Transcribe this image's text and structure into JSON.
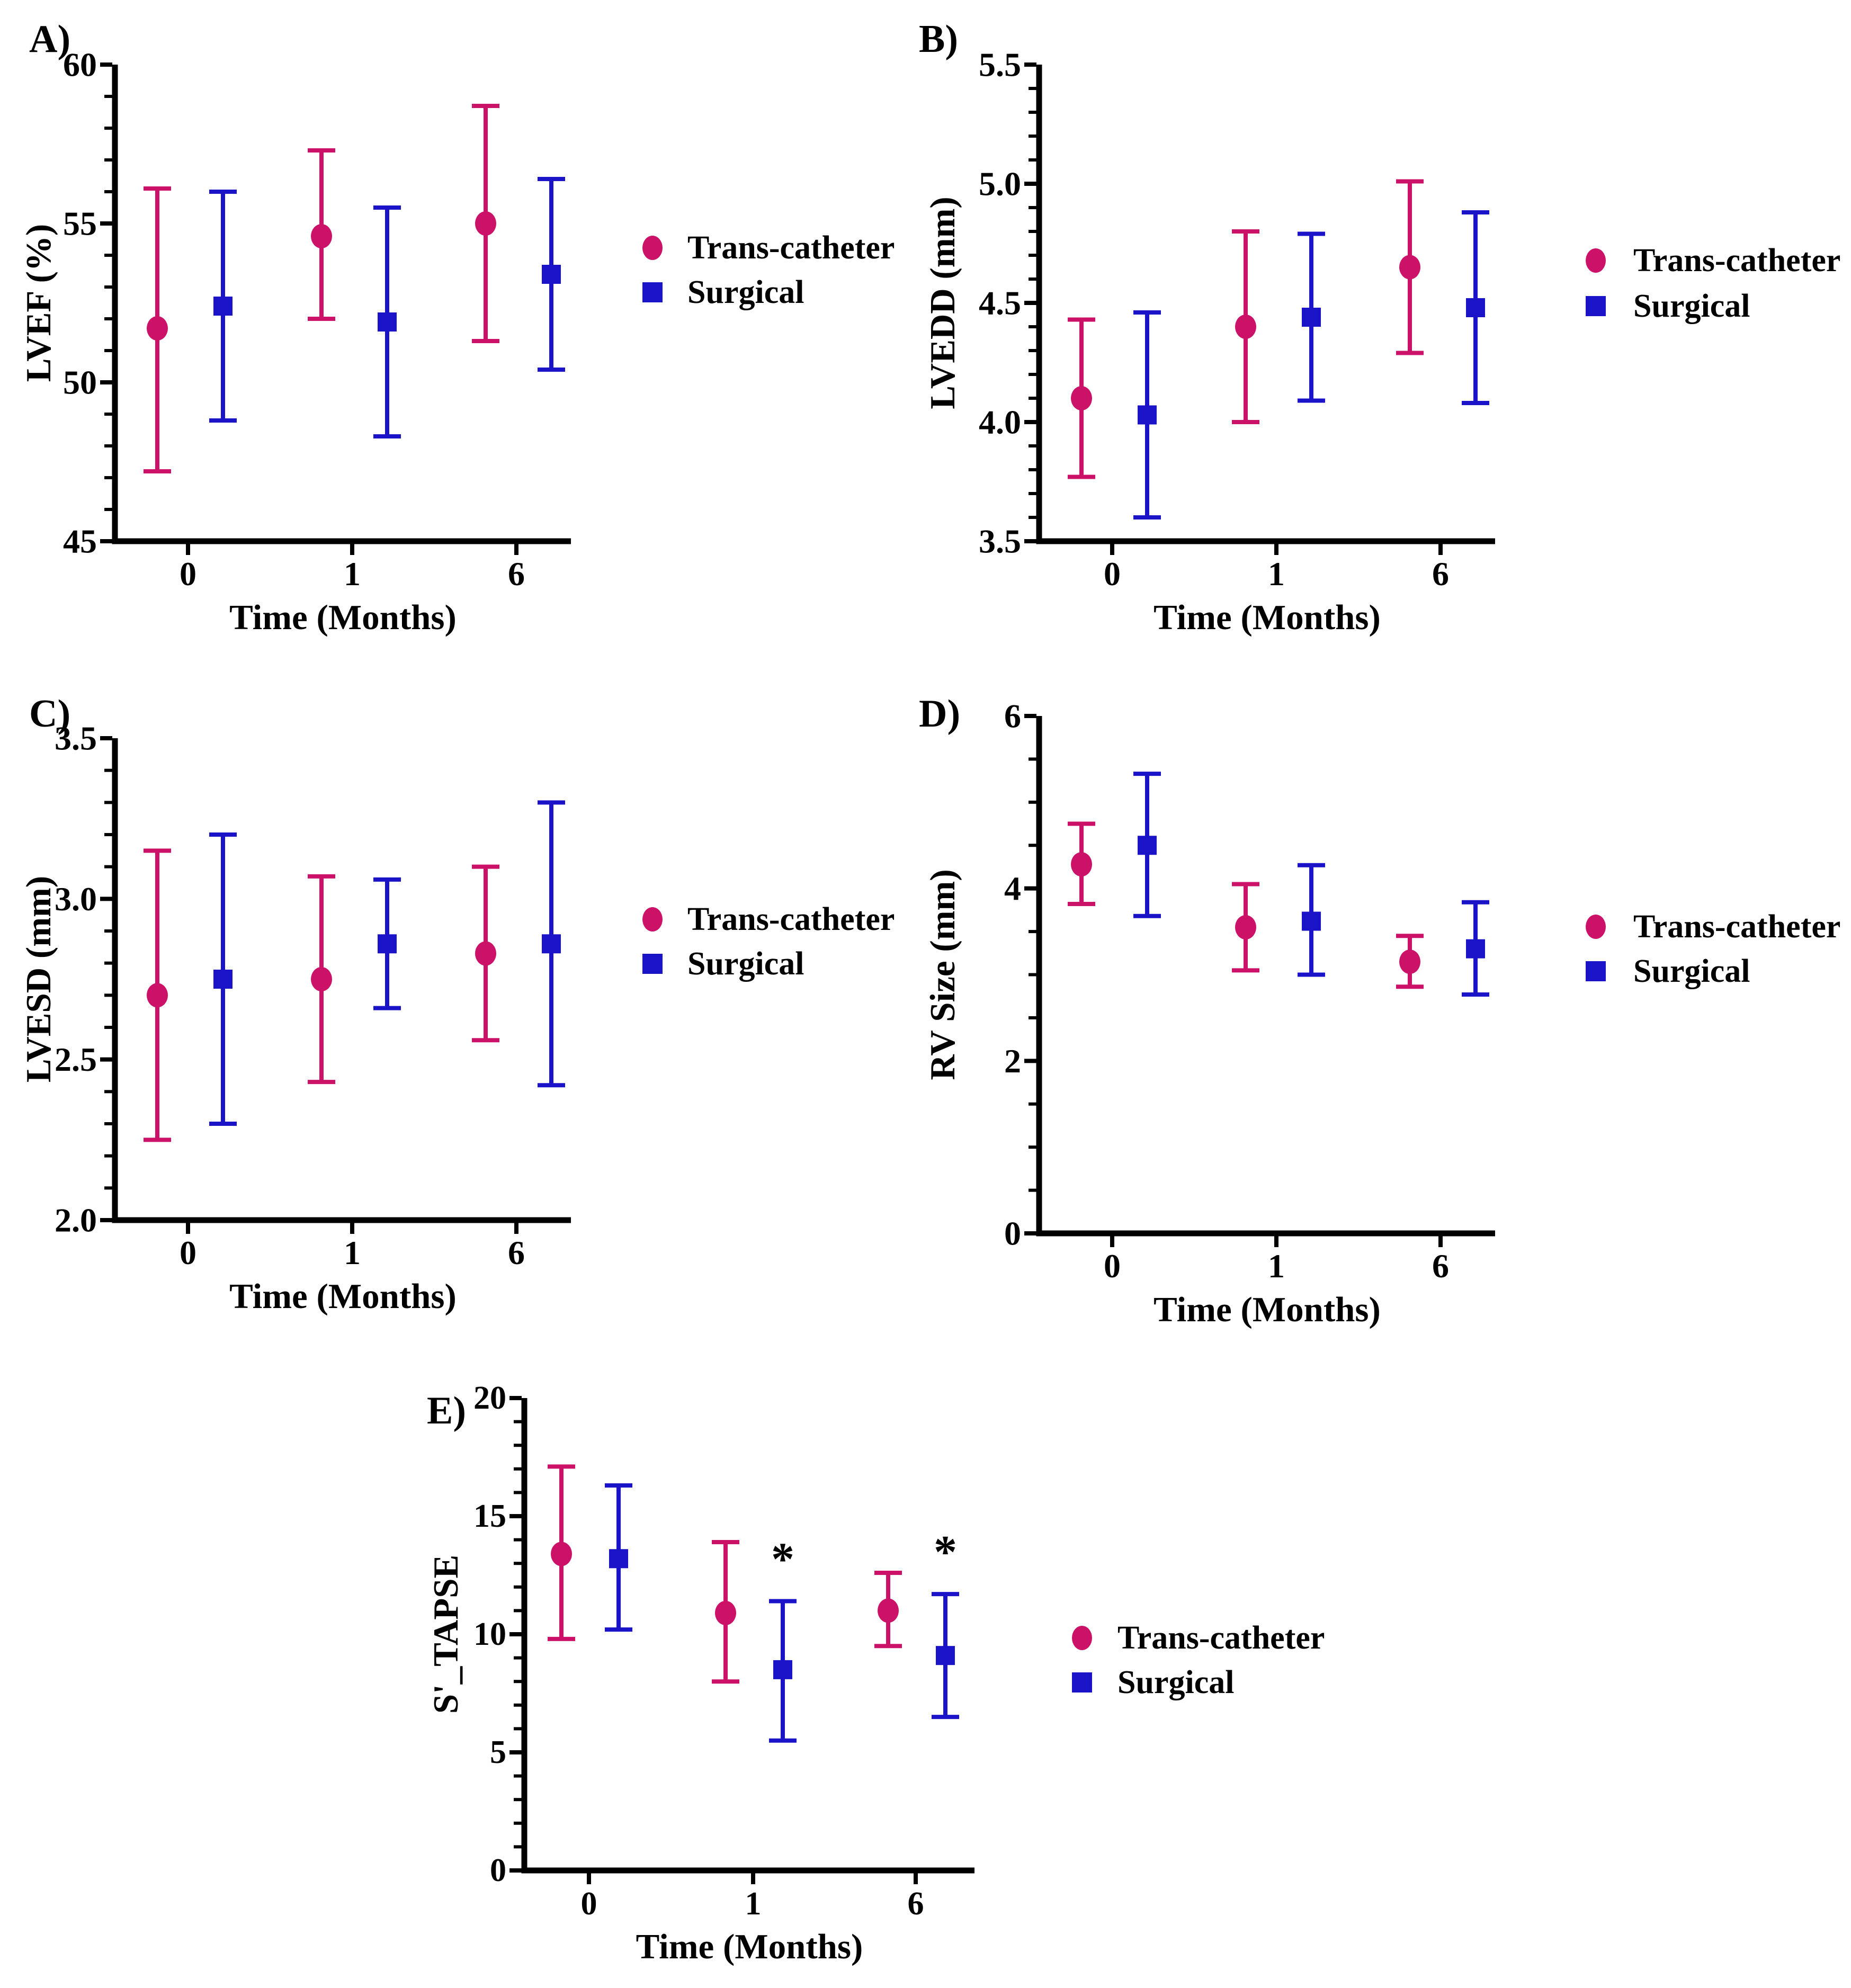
{
  "legend": {
    "items": [
      {
        "label": "Trans-catheter",
        "marker": "circle",
        "color": "#CC1168"
      },
      {
        "label": "Surgical",
        "marker": "square",
        "color": "#1B13C8"
      }
    ]
  },
  "chart_data": [
    {
      "panel_label": "A)",
      "type": "scatter",
      "ylabel": "LVEF (%)",
      "xlabel": "Time (Months)",
      "categories": [
        "0",
        "1",
        "6"
      ],
      "ylim": [
        45,
        60
      ],
      "ytick_step": 5,
      "minor_per_major": 5,
      "ytick_labels": [
        "45",
        "50",
        "55",
        "60"
      ],
      "series": [
        {
          "name": "Trans-catheter",
          "values": [
            51.7,
            54.6,
            55.0
          ],
          "lower": [
            47.2,
            52.0,
            51.3
          ],
          "upper": [
            56.1,
            57.3,
            58.7
          ]
        },
        {
          "name": "Surgical",
          "values": [
            52.4,
            51.9,
            53.4
          ],
          "lower": [
            48.8,
            48.3,
            50.4
          ],
          "upper": [
            56.0,
            55.5,
            56.4
          ]
        }
      ],
      "annotations": []
    },
    {
      "panel_label": "B)",
      "type": "scatter",
      "ylabel": "LVEDD (mm)",
      "xlabel": "Time (Months)",
      "categories": [
        "0",
        "1",
        "6"
      ],
      "ylim": [
        3.5,
        5.5
      ],
      "ytick_step": 0.5,
      "minor_per_major": 5,
      "ytick_labels": [
        "3.5",
        "4.0",
        "4.5",
        "5.0",
        "5.5"
      ],
      "series": [
        {
          "name": "Trans-catheter",
          "values": [
            4.1,
            4.4,
            4.65
          ],
          "lower": [
            3.77,
            4.0,
            4.29
          ],
          "upper": [
            4.43,
            4.8,
            5.01
          ]
        },
        {
          "name": "Surgical",
          "values": [
            4.03,
            4.44,
            4.48
          ],
          "lower": [
            3.6,
            4.09,
            4.08
          ],
          "upper": [
            4.46,
            4.79,
            4.88
          ]
        }
      ],
      "annotations": []
    },
    {
      "panel_label": "C)",
      "type": "scatter",
      "ylabel": "LVESD (mm)",
      "xlabel": "Time (Months)",
      "categories": [
        "0",
        "1",
        "6"
      ],
      "ylim": [
        2.0,
        3.5
      ],
      "ytick_step": 0.5,
      "minor_per_major": 5,
      "ytick_labels": [
        "2.0",
        "2.5",
        "3.0",
        "3.5"
      ],
      "series": [
        {
          "name": "Trans-catheter",
          "values": [
            2.7,
            2.75,
            2.83
          ],
          "lower": [
            2.25,
            2.43,
            2.56
          ],
          "upper": [
            3.15,
            3.07,
            3.1
          ]
        },
        {
          "name": "Surgical",
          "values": [
            2.75,
            2.86,
            2.86
          ],
          "lower": [
            2.3,
            2.66,
            2.42
          ],
          "upper": [
            3.2,
            3.06,
            3.3
          ]
        }
      ],
      "annotations": []
    },
    {
      "panel_label": "D)",
      "type": "scatter",
      "ylabel": "RV Size (mm)",
      "xlabel": "Time (Months)",
      "categories": [
        "0",
        "1",
        "6"
      ],
      "ylim": [
        0,
        6
      ],
      "ytick_step": 2,
      "minor_per_major": 4,
      "ytick_labels": [
        "0",
        "2",
        "4",
        "6"
      ],
      "series": [
        {
          "name": "Trans-catheter",
          "values": [
            4.28,
            3.55,
            3.15
          ],
          "lower": [
            3.82,
            3.05,
            2.86
          ],
          "upper": [
            4.75,
            4.05,
            3.45
          ]
        },
        {
          "name": "Surgical",
          "values": [
            4.5,
            3.62,
            3.3
          ],
          "lower": [
            3.68,
            3.0,
            2.77
          ],
          "upper": [
            5.33,
            4.27,
            3.84
          ]
        }
      ],
      "annotations": []
    },
    {
      "panel_label": "E)",
      "type": "scatter",
      "ylabel": "S'_TAPSE",
      "xlabel": "Time (Months)",
      "categories": [
        "0",
        "1",
        "6"
      ],
      "ylim": [
        0,
        20
      ],
      "ytick_step": 5,
      "minor_per_major": 5,
      "ytick_labels": [
        "0",
        "5",
        "10",
        "15",
        "20"
      ],
      "series": [
        {
          "name": "Trans-catheter",
          "values": [
            13.4,
            10.9,
            11.0
          ],
          "lower": [
            9.8,
            8.0,
            9.5
          ],
          "upper": [
            17.1,
            13.9,
            12.6
          ]
        },
        {
          "name": "Surgical",
          "values": [
            13.2,
            8.5,
            9.1
          ],
          "lower": [
            10.2,
            5.5,
            6.5
          ],
          "upper": [
            16.3,
            11.4,
            11.7
          ]
        }
      ],
      "annotations": [
        {
          "text": "*",
          "series_index": 1,
          "category_index": 1
        },
        {
          "text": "*",
          "series_index": 1,
          "category_index": 2
        }
      ]
    }
  ]
}
